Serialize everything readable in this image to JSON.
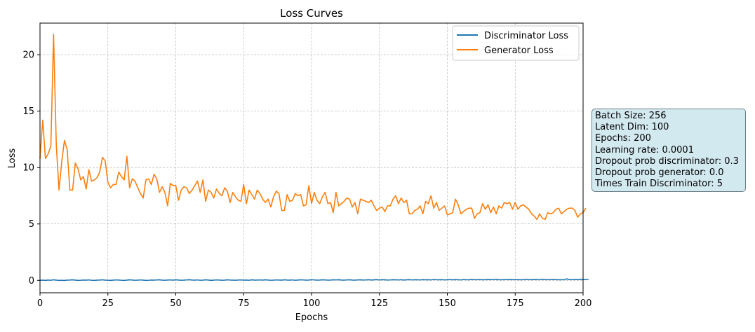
{
  "chart_data": {
    "type": "line",
    "title": "Loss Curves",
    "xlabel": "Epochs",
    "ylabel": "Loss",
    "xlim": [
      0,
      200
    ],
    "ylim": [
      -1.1,
      22.8
    ],
    "xticks": [
      0,
      25,
      50,
      75,
      100,
      125,
      150,
      175,
      200
    ],
    "yticks": [
      0,
      5,
      10,
      15,
      20
    ],
    "grid": true,
    "legend_position": "top-right",
    "series": [
      {
        "name": "Discriminator Loss",
        "color": "#1f77b4",
        "values": [
          0.0,
          0.02,
          0.0,
          0.03,
          0.01,
          0.05,
          0.02,
          0.0,
          0.01,
          -0.01,
          0.02,
          0.03,
          0.05,
          0.02,
          0.0,
          0.01,
          0.03,
          0.02,
          0.04,
          0.01,
          0.0,
          0.02,
          0.03,
          0.05,
          0.02,
          0.01,
          0.0,
          0.02,
          0.04,
          0.03,
          0.01,
          0.0,
          0.02,
          0.05,
          0.03,
          0.01,
          0.02,
          0.04,
          0.02,
          0.0,
          0.01,
          0.03,
          0.02,
          0.04,
          0.05,
          0.02,
          0.01,
          0.03,
          0.04,
          0.02,
          0.05,
          0.03,
          0.01,
          0.02,
          0.04,
          0.06,
          0.03,
          0.02,
          0.04,
          0.01,
          0.02,
          0.05,
          0.03,
          0.0,
          0.02,
          0.04,
          0.03,
          0.01,
          0.02,
          0.05,
          0.03,
          0.02,
          0.01,
          0.03,
          0.04,
          0.02,
          0.03,
          0.01,
          0.05,
          0.02,
          0.03,
          0.04,
          0.02,
          0.05,
          0.03,
          0.01,
          0.02,
          0.04,
          0.03,
          0.02,
          0.05,
          0.03,
          0.02,
          0.04,
          0.01,
          0.03,
          0.05,
          0.04,
          0.02,
          0.03,
          0.06,
          0.04,
          0.02,
          0.03,
          0.05,
          0.04,
          0.02,
          0.03,
          0.05,
          0.04,
          0.06,
          0.03,
          0.02,
          0.04,
          0.05,
          0.03,
          0.02,
          0.04,
          0.05,
          0.03,
          0.04,
          0.06,
          0.03,
          0.05,
          0.07,
          0.04,
          0.06,
          0.05,
          0.03,
          0.04,
          0.06,
          0.05,
          0.04,
          0.06,
          0.03,
          0.05,
          0.07,
          0.04,
          0.06,
          0.05,
          0.04,
          0.07,
          0.05,
          0.06,
          0.04,
          0.08,
          0.06,
          0.05,
          0.07,
          0.04,
          0.06,
          0.08,
          0.05,
          0.07,
          0.06,
          0.04,
          0.08,
          0.06,
          0.05,
          0.09,
          0.07,
          0.06,
          0.08,
          0.05,
          0.07,
          0.09,
          0.06,
          0.08,
          0.1,
          0.06,
          0.05,
          0.08,
          0.07,
          0.09,
          0.06,
          0.08,
          0.07,
          0.05,
          0.08,
          0.1,
          0.08,
          0.06,
          0.09,
          0.07,
          0.08,
          0.1,
          0.07,
          0.06,
          0.08,
          0.09,
          0.07,
          0.06,
          0.05,
          0.08,
          0.13,
          0.07,
          0.08,
          0.09,
          0.07,
          0.1,
          0.09,
          0.06,
          0.08
        ]
      },
      {
        "name": "Generator Loss",
        "color": "#ff7f0e",
        "values": [
          10.8,
          14.2,
          10.8,
          11.2,
          11.9,
          21.8,
          12.0,
          8.0,
          10.5,
          12.4,
          11.6,
          8.0,
          8.0,
          10.4,
          9.9,
          8.9,
          9.2,
          8.1,
          9.8,
          8.8,
          8.9,
          9.1,
          9.6,
          10.9,
          10.6,
          8.7,
          8.2,
          8.5,
          8.5,
          9.6,
          9.2,
          8.9,
          11.0,
          8.2,
          9.0,
          8.8,
          8.2,
          7.7,
          7.3,
          8.9,
          9.0,
          8.5,
          9.4,
          9.0,
          7.8,
          8.3,
          7.8,
          6.6,
          8.6,
          8.4,
          8.4,
          7.1,
          8.0,
          8.3,
          8.2,
          7.7,
          8.0,
          8.4,
          8.8,
          7.8,
          8.9,
          7.0,
          8.0,
          7.8,
          7.3,
          8.1,
          7.7,
          7.5,
          8.2,
          7.9,
          6.9,
          7.8,
          7.4,
          7.1,
          7.0,
          8.5,
          6.8,
          8.0,
          7.6,
          7.2,
          8.0,
          7.7,
          7.2,
          6.9,
          7.2,
          6.5,
          7.4,
          7.9,
          7.7,
          6.2,
          6.2,
          7.6,
          7.0,
          7.1,
          7.7,
          7.5,
          7.6,
          6.6,
          6.7,
          8.4,
          6.8,
          7.8,
          7.1,
          6.8,
          7.4,
          7.8,
          6.8,
          6.9,
          6.0,
          7.8,
          6.6,
          6.8,
          7.0,
          7.3,
          7.2,
          6.5,
          6.9,
          5.9,
          7.2,
          7.1,
          7.0,
          6.9,
          7.1,
          6.6,
          6.2,
          6.4,
          6.5,
          6.1,
          6.6,
          6.6,
          7.2,
          7.5,
          6.8,
          7.3,
          6.9,
          7.1,
          5.9,
          5.9,
          6.2,
          6.3,
          6.6,
          5.9,
          7.0,
          6.8,
          7.5,
          6.4,
          6.9,
          6.2,
          6.4,
          6.6,
          5.8,
          5.9,
          6.0,
          7.2,
          6.7,
          5.9,
          6.1,
          6.3,
          6.4,
          6.4,
          5.5,
          5.9,
          6.0,
          6.8,
          6.3,
          6.7,
          6.0,
          6.5,
          5.9,
          6.6,
          6.4,
          6.9,
          6.8,
          6.9,
          6.3,
          6.9,
          6.3,
          6.6,
          6.7,
          6.5,
          6.3,
          5.9,
          5.7,
          5.4,
          5.9,
          5.5,
          5.4,
          6.0,
          5.9,
          6.0,
          6.3,
          6.4,
          5.9,
          6.1,
          6.3,
          6.4,
          6.4,
          6.2,
          5.6,
          5.9,
          6.0,
          6.4
        ]
      }
    ]
  },
  "info_box": {
    "lines": [
      "Batch Size: 256",
      "Latent Dim: 100",
      "Epochs: 200",
      "Learning rate: 0.0001",
      "Dropout prob discriminator: 0.3",
      "Dropout prob generator: 0.0",
      "Times Train Discriminator: 5"
    ]
  }
}
